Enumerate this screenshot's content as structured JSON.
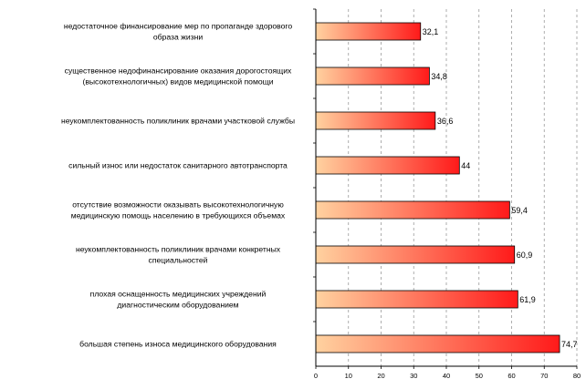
{
  "chart_data": {
    "type": "bar",
    "orientation": "horizontal",
    "categories": [
      [
        "недостаточное финансирование мер по пропаганде здорового",
        "образа жизни"
      ],
      [
        "существенное недофинансирование оказания дорогостоящих",
        "(высокотехнологичных) видов медицинской помощи"
      ],
      [
        "неукомплектованность поликлиник врачами участковой службы"
      ],
      [
        "сильный износ или недостаток санитарного автотранспорта"
      ],
      [
        "отсутствие возможности оказывать высокотехнологичную",
        "медицинскую помощь населению в требующихся объемах"
      ],
      [
        "неукомплектованность поликлиник врачами конкретных",
        "специальностей"
      ],
      [
        "плохая оснащенность медицинских учреждений",
        "диагностическим оборудованием"
      ],
      [
        "большая степень износа медицинского оборудования"
      ]
    ],
    "values": [
      32.1,
      34.8,
      36.6,
      44,
      59.4,
      60.9,
      61.9,
      74.7
    ],
    "value_labels": [
      "32,1",
      "34,8",
      "36,6",
      "44",
      "59,4",
      "60,9",
      "61,9",
      "74,7"
    ],
    "xlim": [
      0,
      80
    ],
    "xticks": [
      0,
      10,
      20,
      30,
      40,
      50,
      60,
      70,
      80
    ],
    "grid": "vertical-dashed",
    "colors": {
      "bar_start": "#ffd2a0",
      "bar_end": "#ff1a1a",
      "grid": "#9a9a9a"
    }
  }
}
